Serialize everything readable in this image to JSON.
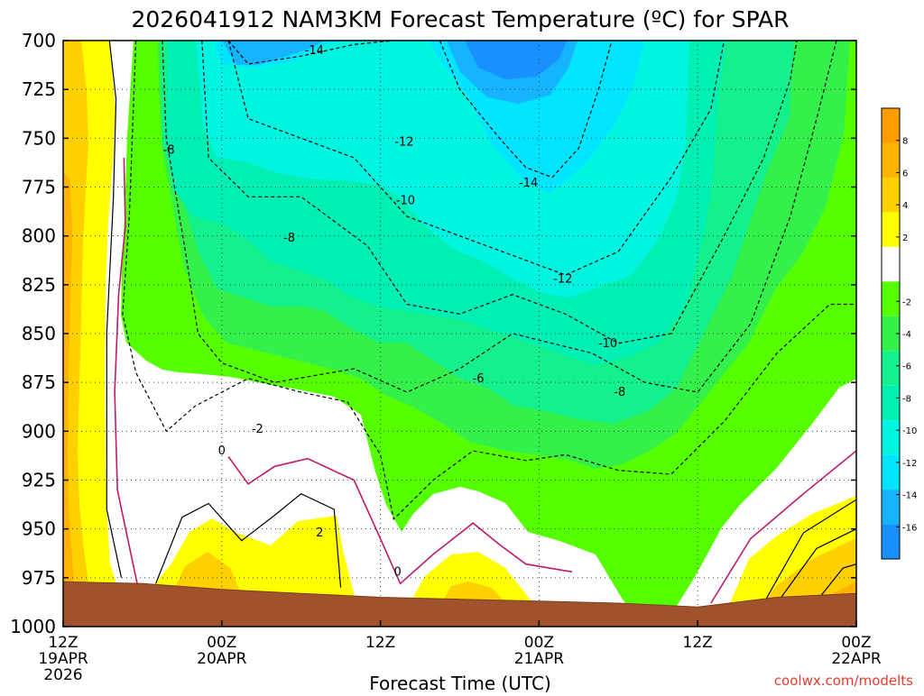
{
  "chart_data": {
    "type": "heatmap",
    "title": "2026041912 NAM3KM Forecast Temperature (ºC) for SPAR",
    "xlabel": "Forecast Time (UTC)",
    "ylabel": "",
    "y_axis": {
      "ticks": [
        700,
        725,
        750,
        775,
        800,
        825,
        850,
        875,
        900,
        925,
        950,
        975,
        1000
      ],
      "range": [
        1000,
        700
      ],
      "units": "hPa"
    },
    "x_axis": {
      "range_hours": [
        0,
        60
      ],
      "ticks": [
        {
          "hour": 0,
          "line1": "12Z",
          "line2": "19APR",
          "line3": "2026"
        },
        {
          "hour": 12,
          "line1": "00Z",
          "line2": "20APR",
          "line3": ""
        },
        {
          "hour": 24,
          "line1": "12Z",
          "line2": "",
          "line3": ""
        },
        {
          "hour": 36,
          "line1": "00Z",
          "line2": "21APR",
          "line3": ""
        },
        {
          "hour": 48,
          "line1": "12Z",
          "line2": "",
          "line3": ""
        },
        {
          "hour": 60,
          "line1": "00Z",
          "line2": "22APR",
          "line3": ""
        }
      ]
    },
    "grid": true,
    "colorbar": {
      "placement": "right",
      "labels": [
        "8",
        "6",
        "4",
        "2",
        "-2",
        "-4",
        "-6",
        "-8",
        "-10",
        "-12",
        "-14",
        "-16"
      ],
      "bins": [
        {
          "min": 8,
          "max": 10,
          "color": "#ff9d00"
        },
        {
          "min": 6,
          "max": 8,
          "color": "#ffb300"
        },
        {
          "min": 4,
          "max": 6,
          "color": "#ffd000"
        },
        {
          "min": 2,
          "max": 4,
          "color": "#ffff00"
        },
        {
          "min": -2,
          "max": 2,
          "color": "#ffffff"
        },
        {
          "min": -4,
          "max": -2,
          "color": "#55ff00"
        },
        {
          "min": -6,
          "max": -4,
          "color": "#33f04a"
        },
        {
          "min": -8,
          "max": -6,
          "color": "#14f08c"
        },
        {
          "min": -10,
          "max": -8,
          "color": "#00f0b4"
        },
        {
          "min": -12,
          "max": -10,
          "color": "#00f5e0"
        },
        {
          "min": -14,
          "max": -12,
          "color": "#00e5ff"
        },
        {
          "min": -16,
          "max": -14,
          "color": "#16b4ff"
        },
        {
          "min": -18,
          "max": -16,
          "color": "#1890ff"
        }
      ]
    },
    "surface_pressure_hpa": [
      {
        "hour": 0,
        "p": 977
      },
      {
        "hour": 6,
        "p": 978
      },
      {
        "hour": 12,
        "p": 981
      },
      {
        "hour": 18,
        "p": 983
      },
      {
        "hour": 24,
        "p": 985
      },
      {
        "hour": 30,
        "p": 986
      },
      {
        "hour": 36,
        "p": 987
      },
      {
        "hour": 42,
        "p": 988
      },
      {
        "hour": 48,
        "p": 990
      },
      {
        "hour": 54,
        "p": 985
      },
      {
        "hour": 60,
        "p": 983
      }
    ],
    "isotherms": [
      {
        "value": 2,
        "color": "#000000",
        "dashed": false,
        "points": [
          [
            3.5,
            700
          ],
          [
            4,
            730
          ],
          [
            3.8,
            780
          ],
          [
            3.3,
            850
          ],
          [
            3.3,
            940
          ],
          [
            4.4,
            975
          ]
        ]
      },
      {
        "value": 0,
        "color": "#c01a6a",
        "dashed": false,
        "points": [
          [
            4.6,
            760
          ],
          [
            4.7,
            795
          ],
          [
            4.2,
            830
          ],
          [
            3.9,
            880
          ],
          [
            4.1,
            930
          ],
          [
            5.6,
            978
          ]
        ]
      },
      {
        "value": 2,
        "color": "#000000",
        "dashed": false,
        "points": [
          [
            7,
            978
          ],
          [
            9,
            944
          ],
          [
            11,
            937
          ],
          [
            13.5,
            956
          ],
          [
            16,
            943
          ],
          [
            18,
            932
          ],
          [
            20.5,
            940
          ],
          [
            21,
            980
          ]
        ]
      },
      {
        "value": 0,
        "color": "#c01a6a",
        "dashed": false,
        "points": [
          [
            12.5,
            913
          ],
          [
            14,
            927
          ],
          [
            16,
            918
          ],
          [
            18.5,
            914
          ],
          [
            22,
            925
          ],
          [
            24,
            955
          ],
          [
            25.5,
            978
          ],
          [
            28,
            963
          ],
          [
            31,
            947
          ],
          [
            33,
            958
          ],
          [
            35,
            968
          ],
          [
            38.5,
            972
          ]
        ]
      },
      {
        "value": 0,
        "color": "#c01a6a",
        "dashed": false,
        "points": [
          [
            49,
            988
          ],
          [
            52,
            955
          ],
          [
            56,
            932
          ],
          [
            60,
            910
          ]
        ]
      },
      {
        "value": 2,
        "color": "#000000",
        "dashed": false,
        "points": [
          [
            53,
            988
          ],
          [
            56,
            952
          ],
          [
            60,
            935
          ]
        ]
      },
      {
        "value": 4,
        "color": "#000000",
        "dashed": false,
        "points": [
          [
            54,
            988
          ],
          [
            57,
            960
          ],
          [
            60,
            950
          ]
        ]
      },
      {
        "value": 6,
        "color": "#000000",
        "dashed": false,
        "points": [
          [
            57,
            987
          ],
          [
            59,
            970
          ],
          [
            60,
            968
          ]
        ]
      },
      {
        "value": -2,
        "color": "#000000",
        "dashed": true,
        "points": [
          [
            5.5,
            700
          ],
          [
            5,
            790
          ],
          [
            4.5,
            840
          ],
          [
            5.5,
            870
          ],
          [
            7.8,
            900
          ],
          [
            10,
            887
          ],
          [
            14,
            873
          ],
          [
            18,
            880
          ],
          [
            21.5,
            885
          ],
          [
            24,
            912
          ],
          [
            25,
            945
          ],
          [
            28,
            925
          ],
          [
            31,
            910
          ],
          [
            35,
            915
          ],
          [
            38,
            912
          ],
          [
            42,
            920
          ],
          [
            46,
            922
          ],
          [
            50,
            895
          ],
          [
            54,
            860
          ],
          [
            58,
            835
          ],
          [
            60,
            835
          ]
        ]
      },
      {
        "value": -8,
        "color": "#000000",
        "dashed": true,
        "points": [
          [
            7.5,
            700
          ],
          [
            7.8,
            750
          ],
          [
            9.3,
            810
          ],
          [
            10.2,
            850
          ],
          [
            12,
            865
          ],
          [
            16,
            875
          ],
          [
            22,
            868
          ],
          [
            26,
            880
          ],
          [
            30,
            868
          ],
          [
            34,
            850
          ],
          [
            40,
            860
          ],
          [
            44,
            875
          ],
          [
            48,
            880
          ],
          [
            52,
            845
          ],
          [
            55,
            790
          ],
          [
            57,
            740
          ],
          [
            58.5,
            700
          ]
        ]
      },
      {
        "value": -10,
        "color": "#000000",
        "dashed": true,
        "points": [
          [
            10.5,
            700
          ],
          [
            11,
            760
          ],
          [
            14,
            780
          ],
          [
            18,
            780
          ],
          [
            23,
            805
          ],
          [
            26,
            835
          ],
          [
            30,
            840
          ],
          [
            34,
            830
          ],
          [
            38,
            840
          ],
          [
            42,
            855
          ],
          [
            46,
            850
          ],
          [
            50,
            800
          ],
          [
            53,
            760
          ],
          [
            55,
            720
          ],
          [
            55.5,
            700
          ]
        ]
      },
      {
        "value": -12,
        "color": "#000000",
        "dashed": true,
        "points": [
          [
            12.5,
            700
          ],
          [
            14,
            740
          ],
          [
            18,
            750
          ],
          [
            22,
            760
          ],
          [
            26,
            790
          ],
          [
            30,
            800
          ],
          [
            34,
            810
          ],
          [
            38,
            820
          ],
          [
            42,
            808
          ],
          [
            46,
            770
          ],
          [
            49,
            735
          ],
          [
            50,
            700
          ]
        ]
      },
      {
        "value": -14,
        "color": "#000000",
        "dashed": true,
        "points": [
          [
            12.5,
            700
          ],
          [
            14,
            712
          ],
          [
            18,
            708
          ],
          [
            22,
            702
          ],
          [
            25,
            700
          ]
        ]
      },
      {
        "value": -14,
        "color": "#000000",
        "dashed": true,
        "points": [
          [
            28.5,
            700
          ],
          [
            30,
            725
          ],
          [
            33,
            750
          ],
          [
            35,
            765
          ],
          [
            37,
            770
          ],
          [
            39,
            755
          ],
          [
            40.5,
            725
          ],
          [
            41.5,
            700
          ]
        ]
      }
    ],
    "contour_labels": [
      {
        "text": "-14",
        "hour": 19,
        "p": 705
      },
      {
        "text": "-12",
        "hour": 25.8,
        "p": 752
      },
      {
        "text": "-14",
        "hour": 35.2,
        "p": 773
      },
      {
        "text": "-8",
        "hour": 8.0,
        "p": 756
      },
      {
        "text": "-10",
        "hour": 25.9,
        "p": 782
      },
      {
        "text": "-8",
        "hour": 17.1,
        "p": 801
      },
      {
        "text": "-12",
        "hour": 37.8,
        "p": 822
      },
      {
        "text": "-10",
        "hour": 41.2,
        "p": 855
      },
      {
        "text": "-6",
        "hour": 31.4,
        "p": 873
      },
      {
        "text": "-8",
        "hour": 42.1,
        "p": 880
      },
      {
        "text": "-2",
        "hour": 14.7,
        "p": 899
      },
      {
        "text": "0",
        "hour": 12.0,
        "p": 910
      },
      {
        "text": "2",
        "hour": 19.4,
        "p": 952
      },
      {
        "text": "0",
        "hour": 25.3,
        "p": 972
      }
    ],
    "credit": "coolwx.com/modelts"
  }
}
